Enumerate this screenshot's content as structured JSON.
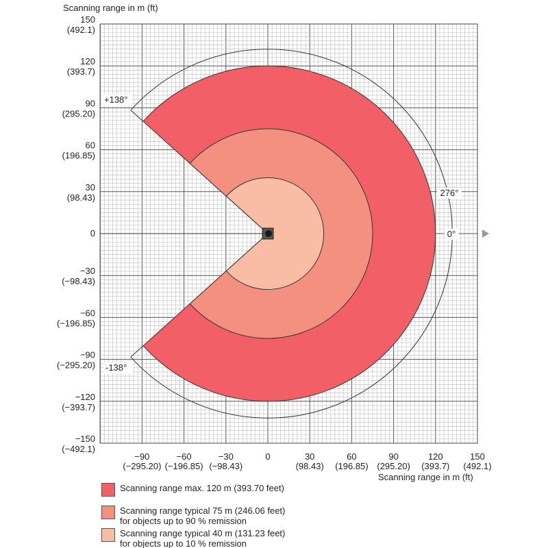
{
  "chart_data": {
    "type": "polar-sector",
    "title": "Scanning range in m (ft)",
    "xlabel": "Scanning range in m (ft)",
    "ylabel": "Scanning range in m (ft)",
    "xlim": [
      -120,
      150
    ],
    "ylim": [
      -150,
      150
    ],
    "grid": true,
    "x_ticks": [
      {
        "v": -90,
        "ft": "(−295.20)"
      },
      {
        "v": -60,
        "ft": "(−196.85)"
      },
      {
        "v": -30,
        "ft": "(−98.43)"
      },
      {
        "v": 0,
        "ft": ""
      },
      {
        "v": 30,
        "ft": "(98.43)"
      },
      {
        "v": 60,
        "ft": "(196.85)"
      },
      {
        "v": 90,
        "ft": "(295.20)"
      },
      {
        "v": 120,
        "ft": "(393.7)"
      },
      {
        "v": 150,
        "ft": "(492.1)"
      }
    ],
    "y_ticks": [
      {
        "v": 150,
        "ft": "(492.1)"
      },
      {
        "v": 120,
        "ft": "(393.7)"
      },
      {
        "v": 90,
        "ft": "(295.20)"
      },
      {
        "v": 60,
        "ft": "(196.85)"
      },
      {
        "v": 30,
        "ft": "(98.43)"
      },
      {
        "v": 0,
        "ft": ""
      },
      {
        "v": -30,
        "ft": "(−98.43)"
      },
      {
        "v": -60,
        "ft": "(−196.85)"
      },
      {
        "v": -90,
        "ft": "(−295.20)"
      },
      {
        "v": -120,
        "ft": "(−393.7)"
      },
      {
        "v": -150,
        "ft": "(−492.1)"
      }
    ],
    "aperture_deg": 276,
    "start_angle_deg": 138,
    "end_angle_deg": -138,
    "annotations": {
      "plus": "+138°",
      "minus": "-138°",
      "aperture": "276°",
      "zero": "0°"
    },
    "series": [
      {
        "name": "Scanning range max. 120 m (393.70 feet)",
        "sub": "",
        "radius": 120,
        "color": "#F25F66"
      },
      {
        "name": "Scanning range typical 75 m (246.06 feet)",
        "sub": "for objects up to 90 % remission",
        "radius": 75,
        "color": "#F4907F"
      },
      {
        "name": "Scanning range typical 40 m (131.23 feet)",
        "sub": "for objects up to 10 % remission",
        "radius": 40,
        "color": "#F9BDA6"
      }
    ]
  }
}
